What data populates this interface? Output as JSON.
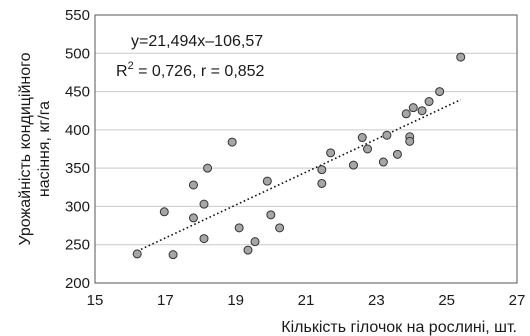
{
  "chart_data": {
    "type": "scatter",
    "title": "",
    "xlabel": "Кількість гілочок на рослині, шт.",
    "ylabel": [
      "Урожайність кондиційного",
      "насіння, кг/га"
    ],
    "xlim": [
      15,
      27
    ],
    "ylim": [
      200,
      550
    ],
    "x_ticks": [
      15,
      17,
      19,
      21,
      23,
      25,
      27
    ],
    "y_ticks": [
      200,
      250,
      300,
      350,
      400,
      450,
      500,
      550
    ],
    "grid": "horizontal",
    "equation": "y=21,494x–106,57",
    "r2_prefix": "R",
    "r2_sup": "2",
    "r2_rest": " = 0,726, r = 0,852",
    "trendline": {
      "type": "linear",
      "slope": 21.494,
      "intercept": -106.57,
      "x_range": [
        16.2,
        25.4
      ]
    },
    "points": [
      {
        "x": 16.2,
        "y": 238
      },
      {
        "x": 16.97,
        "y": 293
      },
      {
        "x": 17.22,
        "y": 237
      },
      {
        "x": 17.8,
        "y": 285
      },
      {
        "x": 17.8,
        "y": 328
      },
      {
        "x": 18.1,
        "y": 303
      },
      {
        "x": 18.1,
        "y": 258
      },
      {
        "x": 18.2,
        "y": 350
      },
      {
        "x": 18.9,
        "y": 384
      },
      {
        "x": 19.1,
        "y": 272
      },
      {
        "x": 19.35,
        "y": 243
      },
      {
        "x": 19.55,
        "y": 254
      },
      {
        "x": 19.9,
        "y": 333
      },
      {
        "x": 20.0,
        "y": 289
      },
      {
        "x": 20.25,
        "y": 272
      },
      {
        "x": 21.45,
        "y": 330
      },
      {
        "x": 21.45,
        "y": 348
      },
      {
        "x": 21.7,
        "y": 370
      },
      {
        "x": 22.35,
        "y": 354
      },
      {
        "x": 22.6,
        "y": 390
      },
      {
        "x": 22.75,
        "y": 375
      },
      {
        "x": 23.2,
        "y": 358
      },
      {
        "x": 23.3,
        "y": 393
      },
      {
        "x": 23.6,
        "y": 368
      },
      {
        "x": 23.85,
        "y": 421
      },
      {
        "x": 23.95,
        "y": 391
      },
      {
        "x": 23.95,
        "y": 385
      },
      {
        "x": 24.05,
        "y": 429
      },
      {
        "x": 24.3,
        "y": 425
      },
      {
        "x": 24.5,
        "y": 437
      },
      {
        "x": 24.8,
        "y": 450
      },
      {
        "x": 25.4,
        "y": 495
      }
    ]
  }
}
